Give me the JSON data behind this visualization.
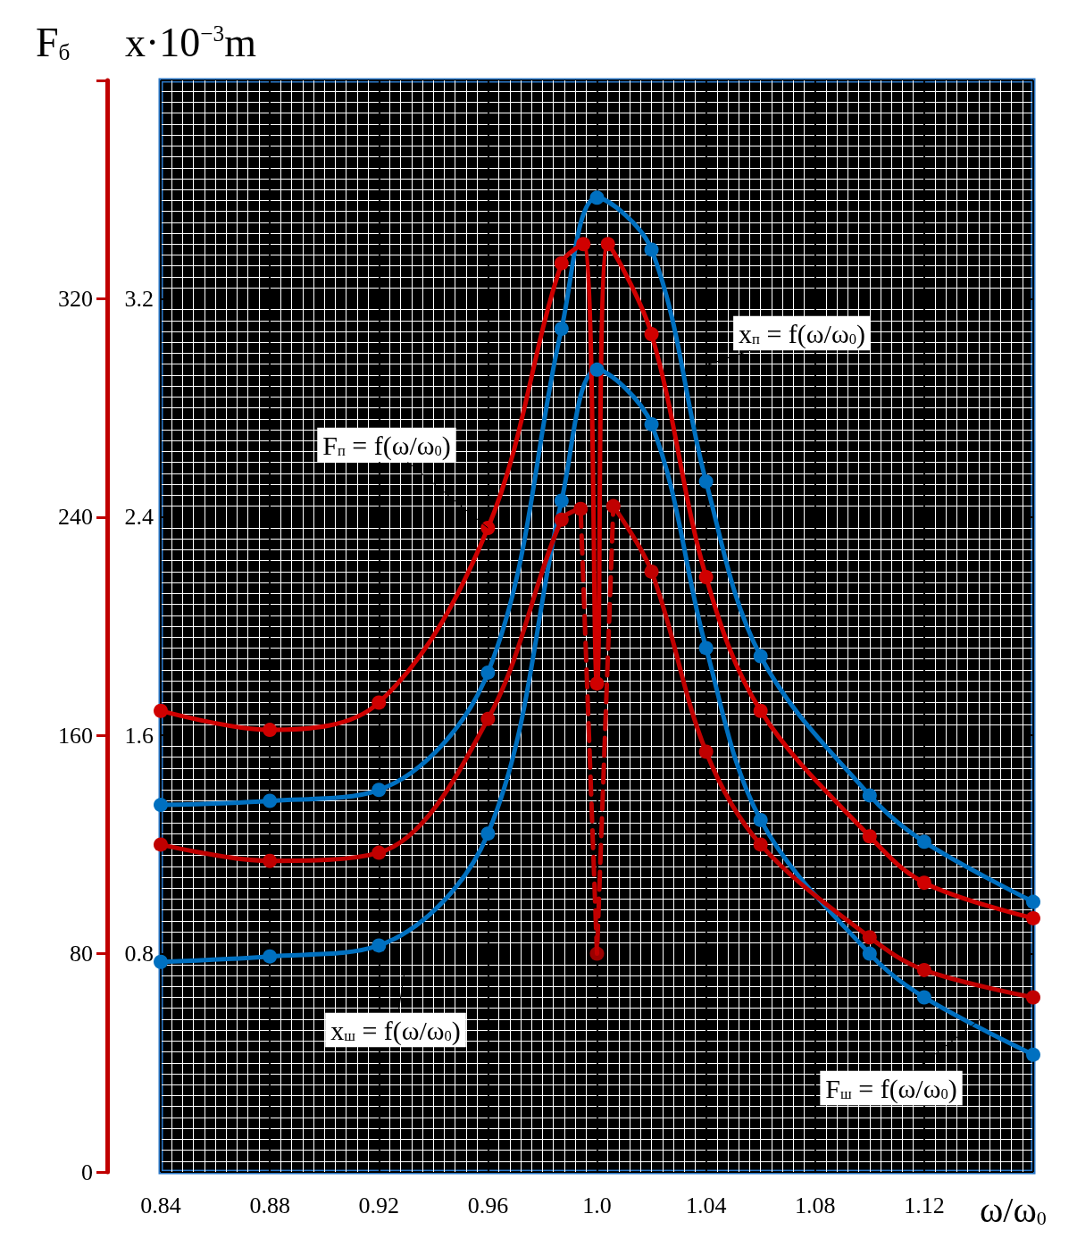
{
  "chart_data": {
    "type": "line",
    "ylabel": "F$_{б}$",
    "y2label": "x·10$^{−3}$m",
    "xlabel": "ω/ω$_{0}$",
    "xlim": [
      0.84,
      1.16
    ],
    "xticks": [
      0.84,
      0.88,
      0.92,
      0.96,
      {
        "value": 1,
        "label": "1.0"
      },
      1.04,
      1.08,
      1.12
    ],
    "ylim": [
      0,
      400
    ],
    "yticks": [
      0,
      80,
      160,
      240,
      320
    ],
    "y2lim": [
      0,
      4
    ],
    "y2ticks": [
      0.8,
      1.6,
      2.4,
      3.2
    ],
    "grid": true,
    "marker": "circle",
    "line_style": "solid",
    "series": [
      {
        "color": "#0070c0",
        "axis": "y2",
        "x": [
          0.84,
          0.88,
          0.92,
          0.96,
          0.987,
          1.0,
          1.02,
          1.04,
          1.06,
          1.1,
          1.12,
          1.16
        ],
        "values": [
          1.345,
          1.36,
          1.4,
          1.83,
          3.09,
          3.57,
          3.38,
          2.53,
          1.89,
          1.38,
          1.21,
          0.99
        ]
      },
      {
        "color": "#0070c0",
        "axis": "y2",
        "x": [
          0.84,
          0.88,
          0.92,
          0.96,
          0.987,
          1.0,
          1.02,
          1.04,
          1.06,
          1.1,
          1.12,
          1.16
        ],
        "values": [
          0.77,
          0.79,
          0.83,
          1.24,
          2.46,
          2.94,
          2.74,
          1.92,
          1.29,
          0.8,
          0.64,
          0.43
        ]
      },
      {
        "color": "#d00000",
        "x": [
          0.84,
          0.88,
          0.92,
          0.96,
          0.987,
          0.995,
          1.0,
          1.004,
          1.02,
          1.04,
          1.06,
          1.1,
          1.12,
          1.16
        ],
        "values": [
          169,
          162,
          172,
          236,
          333,
          340,
          179,
          340,
          307,
          218,
          169,
          123,
          106,
          93
        ]
      },
      {
        "color": "#c00000",
        "x": [
          0.84,
          0.88,
          0.92,
          0.96,
          0.987,
          0.994
        ],
        "values": [
          120,
          114,
          117,
          166,
          239,
          243
        ]
      },
      {
        "color": "#c00000",
        "x": [
          1.006,
          1.02,
          1.04,
          1.06,
          1.1,
          1.12,
          1.16
        ],
        "values": [
          244,
          220,
          154,
          120,
          86,
          74,
          64
        ]
      },
      {
        "color": "#c00000",
        "line_style": "dashed",
        "marker": "none",
        "x": [
          0.994,
          1.0,
          1.006
        ],
        "values": [
          243,
          80,
          244
        ]
      },
      {
        "color": "#c00000",
        "type": "scatter",
        "x": [
          1.0
        ],
        "values": [
          80
        ]
      }
    ],
    "annotations": [
      "x$_{п}$ = f(ω/ω$_{0}$)",
      {
        "text": "F$_{п}$ = f(ω/ω$_{0}$)",
        "x": 0.96,
        "y": 236
      },
      "x$_{ш}$ = f(ω/ω$_{0}$)",
      "F$_{ш}$ = f(ω/ω$_{0}$)"
    ]
  }
}
